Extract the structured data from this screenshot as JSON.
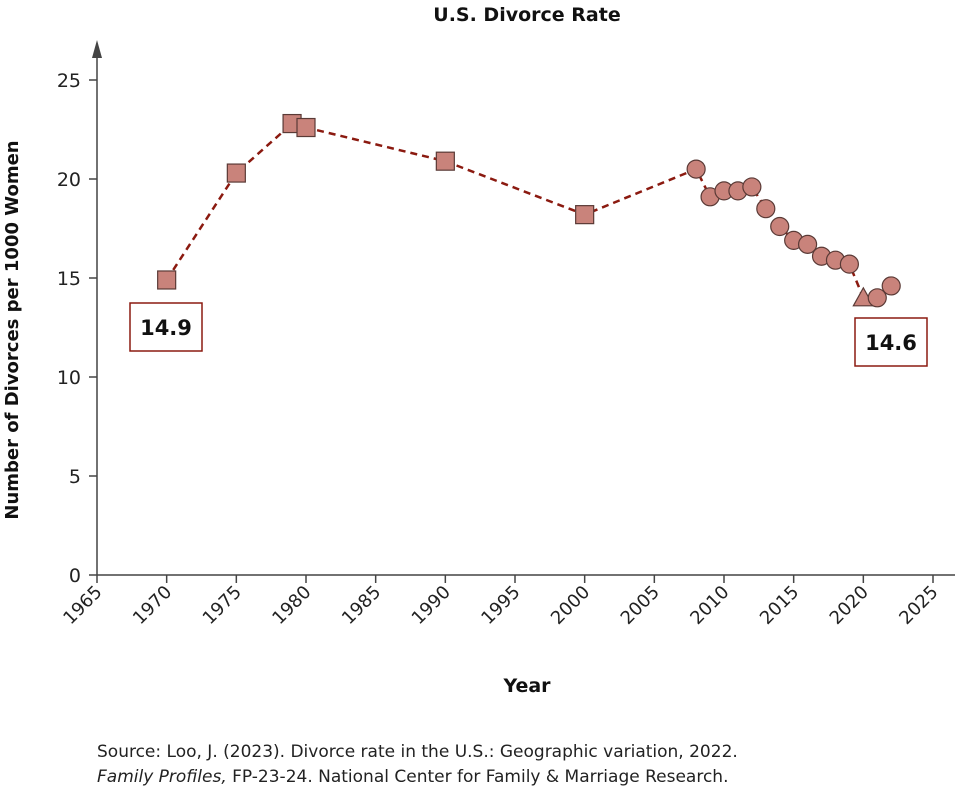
{
  "chart_data": {
    "type": "line",
    "title": "U.S. Divorce Rate",
    "xlabel": "Year",
    "ylabel": "Number of Divorces per 1000 Women",
    "xlim": [
      1965,
      2025
    ],
    "ylim": [
      0,
      25
    ],
    "xticks": [
      1965,
      1970,
      1975,
      1980,
      1985,
      1990,
      1995,
      2000,
      2005,
      2010,
      2015,
      2020,
      2025
    ],
    "yticks": [
      0,
      5,
      10,
      15,
      20,
      25
    ],
    "grid": false,
    "line_color": "#8b1a10",
    "marker_color": "#c9837b",
    "points": [
      {
        "x": 1970,
        "y": 14.9,
        "marker": "square"
      },
      {
        "x": 1975,
        "y": 20.3,
        "marker": "square"
      },
      {
        "x": 1979,
        "y": 22.8,
        "marker": "square"
      },
      {
        "x": 1980,
        "y": 22.6,
        "marker": "square"
      },
      {
        "x": 1990,
        "y": 20.9,
        "marker": "square"
      },
      {
        "x": 2000,
        "y": 18.2,
        "marker": "square"
      },
      {
        "x": 2008,
        "y": 20.5,
        "marker": "circle"
      },
      {
        "x": 2009,
        "y": 19.1,
        "marker": "circle"
      },
      {
        "x": 2010,
        "y": 19.4,
        "marker": "circle"
      },
      {
        "x": 2011,
        "y": 19.4,
        "marker": "circle"
      },
      {
        "x": 2012,
        "y": 19.6,
        "marker": "circle"
      },
      {
        "x": 2013,
        "y": 18.5,
        "marker": "circle"
      },
      {
        "x": 2014,
        "y": 17.6,
        "marker": "circle"
      },
      {
        "x": 2015,
        "y": 16.9,
        "marker": "circle"
      },
      {
        "x": 2016,
        "y": 16.7,
        "marker": "circle"
      },
      {
        "x": 2017,
        "y": 16.1,
        "marker": "circle"
      },
      {
        "x": 2018,
        "y": 15.9,
        "marker": "circle"
      },
      {
        "x": 2019,
        "y": 15.7,
        "marker": "circle"
      },
      {
        "x": 2020,
        "y": 14.0,
        "marker": "triangle"
      },
      {
        "x": 2021,
        "y": 14.0,
        "marker": "circle"
      },
      {
        "x": 2022,
        "y": 14.6,
        "marker": "circle"
      }
    ],
    "line_through_year": 2020,
    "annotations": [
      {
        "text": "14.9",
        "x": 1970
      },
      {
        "text": "14.6",
        "x": 2022
      }
    ]
  },
  "source": {
    "line1": "Source: Loo, J. (2023). Divorce rate in the U.S.: Geographic variation, 2022.",
    "italic": "Family Profiles,",
    "line2_rest": " FP-23-24. National Center for Family & Marriage Research."
  }
}
